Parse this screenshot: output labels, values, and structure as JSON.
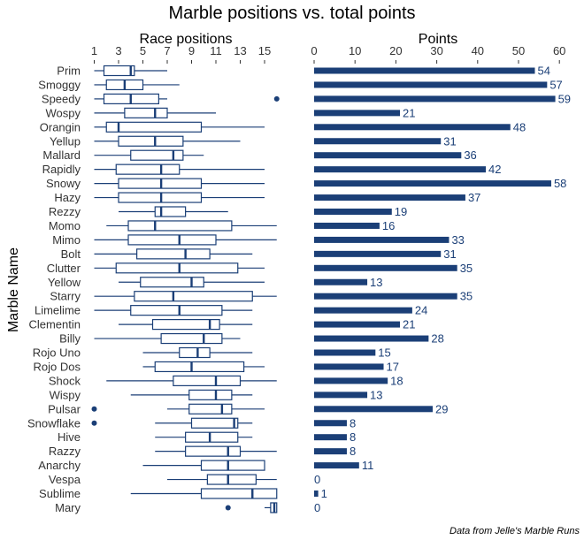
{
  "accent": "#1b3f77",
  "chart_data": {
    "title": "Marble positions vs. total points",
    "caption": "Data from Jelle's Marble Runs",
    "ylabel": "Marble Name",
    "marbles": [
      "Prim",
      "Smoggy",
      "Speedy",
      "Wospy",
      "Orangin",
      "Yellup",
      "Mallard",
      "Rapidly",
      "Snowy",
      "Hazy",
      "Rezzy",
      "Momo",
      "Mimo",
      "Bolt",
      "Clutter",
      "Yellow",
      "Starry",
      "Limelime",
      "Clementin",
      "Billy",
      "Rojo Uno",
      "Rojo Dos",
      "Shock",
      "Wispy",
      "Pulsar",
      "Snowflake",
      "Hive",
      "Razzy",
      "Anarchy",
      "Vespa",
      "Sublime",
      "Mary"
    ],
    "panels": [
      {
        "type": "boxplot",
        "title": "Race positions",
        "xlim": [
          0,
          17
        ],
        "ticks": [
          1,
          3,
          5,
          7,
          9,
          11,
          13,
          15
        ],
        "boxes": [
          {
            "min": 1,
            "q1": 1.8,
            "median": 4,
            "q3": 4.3,
            "max": 7,
            "outliers": []
          },
          {
            "min": 1,
            "q1": 2,
            "median": 3.5,
            "q3": 5,
            "max": 8,
            "outliers": []
          },
          {
            "min": 1,
            "q1": 1.8,
            "median": 4,
            "q3": 6.3,
            "max": 7,
            "outliers": [
              16
            ]
          },
          {
            "min": 1,
            "q1": 3.5,
            "median": 6,
            "q3": 7,
            "max": 11,
            "outliers": []
          },
          {
            "min": 1,
            "q1": 2,
            "median": 3,
            "q3": 9.8,
            "max": 15,
            "outliers": []
          },
          {
            "min": 1,
            "q1": 3,
            "median": 6,
            "q3": 8.3,
            "max": 13,
            "outliers": []
          },
          {
            "min": 1,
            "q1": 4,
            "median": 7.5,
            "q3": 8.3,
            "max": 10,
            "outliers": []
          },
          {
            "min": 1,
            "q1": 2.8,
            "median": 6.5,
            "q3": 8,
            "max": 15,
            "outliers": []
          },
          {
            "min": 1,
            "q1": 3,
            "median": 6.5,
            "q3": 9.8,
            "max": 15,
            "outliers": []
          },
          {
            "min": 1,
            "q1": 3,
            "median": 6.5,
            "q3": 9.8,
            "max": 15,
            "outliers": []
          },
          {
            "min": 3,
            "q1": 6,
            "median": 6.5,
            "q3": 8.5,
            "max": 12,
            "outliers": []
          },
          {
            "min": 2,
            "q1": 3.8,
            "median": 6,
            "q3": 12.3,
            "max": 16,
            "outliers": []
          },
          {
            "min": 1,
            "q1": 3.8,
            "median": 8,
            "q3": 11,
            "max": 16,
            "outliers": []
          },
          {
            "min": 1,
            "q1": 4.5,
            "median": 8.5,
            "q3": 10.5,
            "max": 14,
            "outliers": []
          },
          {
            "min": 1,
            "q1": 2.8,
            "median": 8,
            "q3": 12.8,
            "max": 15,
            "outliers": []
          },
          {
            "min": 3,
            "q1": 4.8,
            "median": 9,
            "q3": 10,
            "max": 15,
            "outliers": []
          },
          {
            "min": 1,
            "q1": 4.3,
            "median": 7.5,
            "q3": 14,
            "max": 16,
            "outliers": []
          },
          {
            "min": 1,
            "q1": 4,
            "median": 8,
            "q3": 11.5,
            "max": 14,
            "outliers": []
          },
          {
            "min": 3,
            "q1": 5.8,
            "median": 10.5,
            "q3": 11.3,
            "max": 14,
            "outliers": []
          },
          {
            "min": 1,
            "q1": 6.5,
            "median": 10,
            "q3": 11.5,
            "max": 13,
            "outliers": []
          },
          {
            "min": 5,
            "q1": 8,
            "median": 9.5,
            "q3": 10.5,
            "max": 14,
            "outliers": []
          },
          {
            "min": 5,
            "q1": 6,
            "median": 9,
            "q3": 13.3,
            "max": 15,
            "outliers": []
          },
          {
            "min": 2,
            "q1": 7.5,
            "median": 11,
            "q3": 13,
            "max": 16,
            "outliers": []
          },
          {
            "min": 4,
            "q1": 8.8,
            "median": 11,
            "q3": 12.3,
            "max": 14,
            "outliers": []
          },
          {
            "min": 7,
            "q1": 8.8,
            "median": 11.5,
            "q3": 12.3,
            "max": 15,
            "outliers": [
              1
            ]
          },
          {
            "min": 6,
            "q1": 9,
            "median": 12.5,
            "q3": 12.8,
            "max": 14,
            "outliers": [
              1
            ]
          },
          {
            "min": 6,
            "q1": 8.5,
            "median": 10.5,
            "q3": 12.8,
            "max": 14,
            "outliers": []
          },
          {
            "min": 6,
            "q1": 8.5,
            "median": 12,
            "q3": 13,
            "max": 16,
            "outliers": []
          },
          {
            "min": 5,
            "q1": 9.8,
            "median": 12,
            "q3": 15,
            "max": 15,
            "outliers": []
          },
          {
            "min": 7,
            "q1": 10.3,
            "median": 12,
            "q3": 14.3,
            "max": 16,
            "outliers": []
          },
          {
            "min": 4,
            "q1": 9.8,
            "median": 14,
            "q3": 16,
            "max": 16,
            "outliers": []
          },
          {
            "min": 15,
            "q1": 15.5,
            "median": 15.8,
            "q3": 16,
            "max": 16,
            "outliers": [
              12
            ]
          }
        ]
      },
      {
        "type": "bar",
        "title": "Points",
        "xlim": [
          0,
          60
        ],
        "ticks": [
          0,
          10,
          20,
          30,
          40,
          50,
          60
        ],
        "values": [
          54,
          57,
          59,
          21,
          48,
          31,
          36,
          42,
          58,
          37,
          19,
          16,
          33,
          31,
          35,
          13,
          35,
          24,
          21,
          28,
          15,
          17,
          18,
          13,
          29,
          8,
          8,
          8,
          11,
          0,
          1,
          0
        ]
      }
    ]
  }
}
